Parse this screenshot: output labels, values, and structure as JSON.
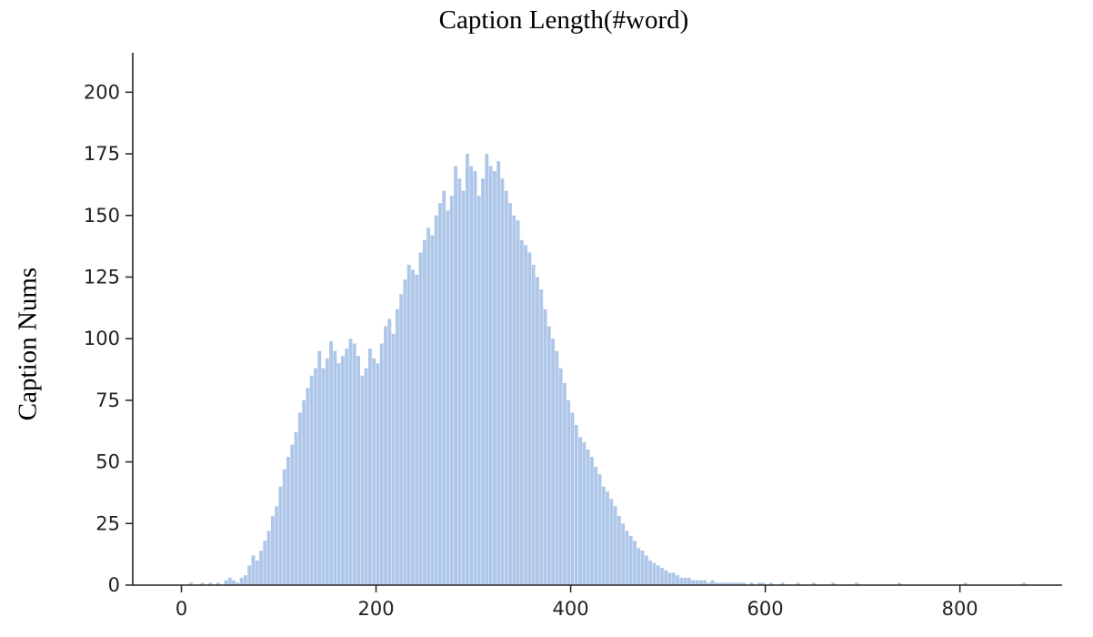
{
  "chart_data": {
    "type": "bar",
    "title": "Caption Length(#word)",
    "xlabel": "",
    "ylabel": "Caption Nums",
    "xlim": [
      -50,
      905
    ],
    "ylim": [
      0,
      216
    ],
    "xticks": [
      0,
      200,
      400,
      600,
      800
    ],
    "yticks": [
      0,
      25,
      50,
      75,
      100,
      125,
      150,
      175,
      200
    ],
    "grid": false,
    "bar_color": "#aec7e8",
    "bin_width": 4,
    "x": [
      0,
      4,
      8,
      12,
      16,
      20,
      24,
      28,
      32,
      36,
      40,
      44,
      48,
      52,
      56,
      60,
      64,
      68,
      72,
      76,
      80,
      84,
      88,
      92,
      96,
      100,
      104,
      108,
      112,
      116,
      120,
      124,
      128,
      132,
      136,
      140,
      144,
      148,
      152,
      156,
      160,
      164,
      168,
      172,
      176,
      180,
      184,
      188,
      192,
      196,
      200,
      204,
      208,
      212,
      216,
      220,
      224,
      228,
      232,
      236,
      240,
      244,
      248,
      252,
      256,
      260,
      264,
      268,
      272,
      276,
      280,
      284,
      288,
      292,
      296,
      300,
      304,
      308,
      312,
      316,
      320,
      324,
      328,
      332,
      336,
      340,
      344,
      348,
      352,
      356,
      360,
      364,
      368,
      372,
      376,
      380,
      384,
      388,
      392,
      396,
      400,
      404,
      408,
      412,
      416,
      420,
      424,
      428,
      432,
      436,
      440,
      444,
      448,
      452,
      456,
      460,
      464,
      468,
      472,
      476,
      480,
      484,
      488,
      492,
      496,
      500,
      504,
      508,
      512,
      516,
      520,
      524,
      528,
      532,
      536,
      540,
      544,
      548,
      552,
      556,
      560,
      564,
      568,
      572,
      576,
      580,
      584,
      588,
      592,
      596,
      600,
      604,
      608,
      612,
      616,
      620,
      624,
      628,
      632,
      636,
      640,
      644,
      648,
      652,
      656,
      660,
      664,
      668,
      672,
      676,
      680,
      684,
      688,
      692,
      696,
      700,
      704,
      708,
      712,
      716,
      720,
      724,
      728,
      732,
      736,
      740,
      744,
      748,
      752,
      756,
      760,
      764,
      768,
      772,
      776,
      780,
      784,
      788,
      792,
      796,
      800,
      804,
      808,
      812,
      816,
      820,
      824,
      828,
      832,
      836,
      840,
      844,
      848,
      852,
      856,
      860,
      864
    ],
    "values": [
      0,
      0,
      1,
      0,
      0,
      1,
      0,
      1,
      0,
      1,
      0,
      2,
      3,
      2,
      1,
      3,
      4,
      8,
      12,
      10,
      14,
      18,
      22,
      28,
      32,
      40,
      47,
      52,
      57,
      62,
      70,
      75,
      80,
      85,
      88,
      95,
      88,
      92,
      99,
      95,
      90,
      93,
      96,
      100,
      98,
      93,
      85,
      88,
      96,
      92,
      90,
      98,
      105,
      108,
      102,
      112,
      118,
      124,
      130,
      128,
      126,
      135,
      140,
      145,
      142,
      150,
      155,
      160,
      152,
      158,
      170,
      165,
      160,
      175,
      170,
      168,
      158,
      165,
      175,
      170,
      168,
      172,
      165,
      160,
      155,
      150,
      148,
      140,
      138,
      135,
      130,
      125,
      120,
      112,
      105,
      100,
      95,
      88,
      82,
      75,
      70,
      65,
      60,
      58,
      55,
      52,
      48,
      45,
      40,
      38,
      35,
      32,
      28,
      25,
      22,
      20,
      18,
      15,
      14,
      12,
      10,
      9,
      8,
      7,
      6,
      5,
      5,
      4,
      3,
      3,
      3,
      2,
      2,
      2,
      2,
      1,
      2,
      1,
      1,
      1,
      1,
      1,
      1,
      1,
      1,
      0,
      1,
      0,
      1,
      1,
      0,
      1,
      0,
      0,
      1,
      0,
      0,
      0,
      1,
      0,
      0,
      0,
      1,
      0,
      0,
      0,
      0,
      1,
      0,
      0,
      0,
      0,
      0,
      1,
      0,
      0,
      0,
      0,
      0,
      0,
      0,
      0,
      0,
      0,
      1,
      0,
      0,
      0,
      0,
      0,
      0,
      0,
      0,
      0,
      0,
      0,
      0,
      0,
      0,
      0,
      0,
      1,
      0,
      0,
      0,
      0,
      0,
      0,
      0,
      0,
      0,
      0,
      0,
      0,
      0,
      0,
      1
    ]
  }
}
